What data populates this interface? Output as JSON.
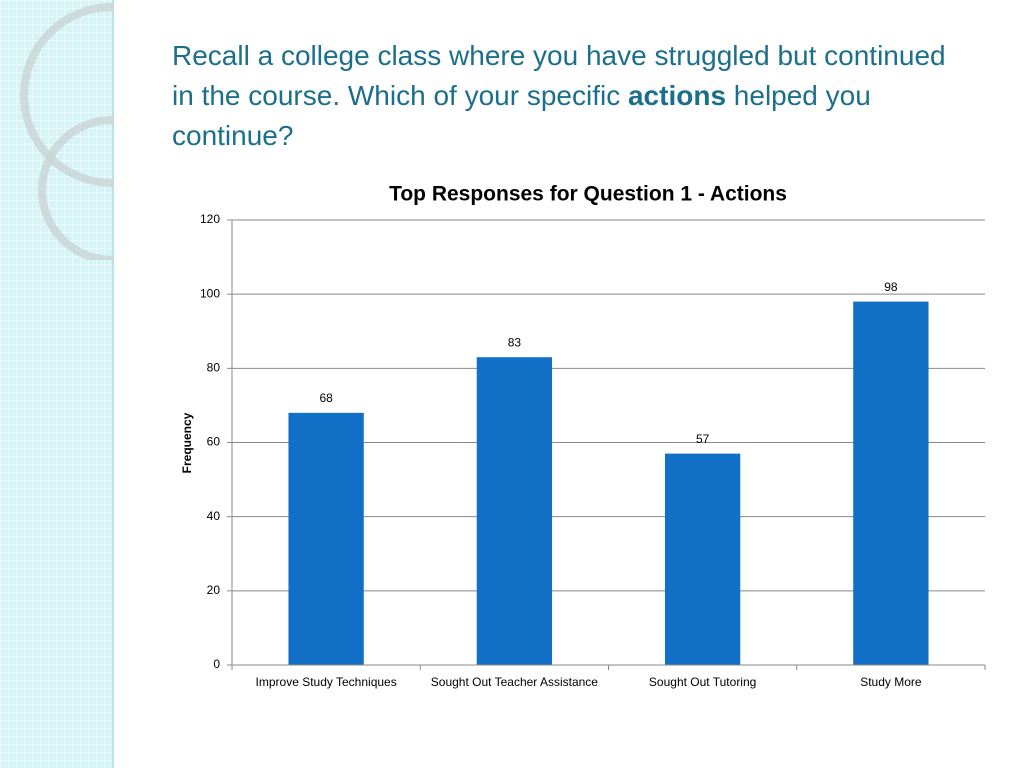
{
  "slide": {
    "title_parts": [
      "Recall a college class where you have struggled but continued in the course. Which of your specific",
      "actions",
      "helped you continue?"
    ]
  },
  "chart_data": {
    "type": "bar",
    "title": "Top Responses for Question 1 - Actions",
    "y_label": "Frequency",
    "categories": [
      "Improve Study Techniques",
      "Sought Out Teacher Assistance",
      "Sought Out Tutoring",
      "Study More"
    ],
    "values": [
      68,
      83,
      57,
      98
    ],
    "color": "#1170c6",
    "ylim": [
      0,
      120
    ],
    "yticks": [
      0,
      20,
      40,
      60,
      80,
      100,
      120
    ],
    "grid": true
  }
}
